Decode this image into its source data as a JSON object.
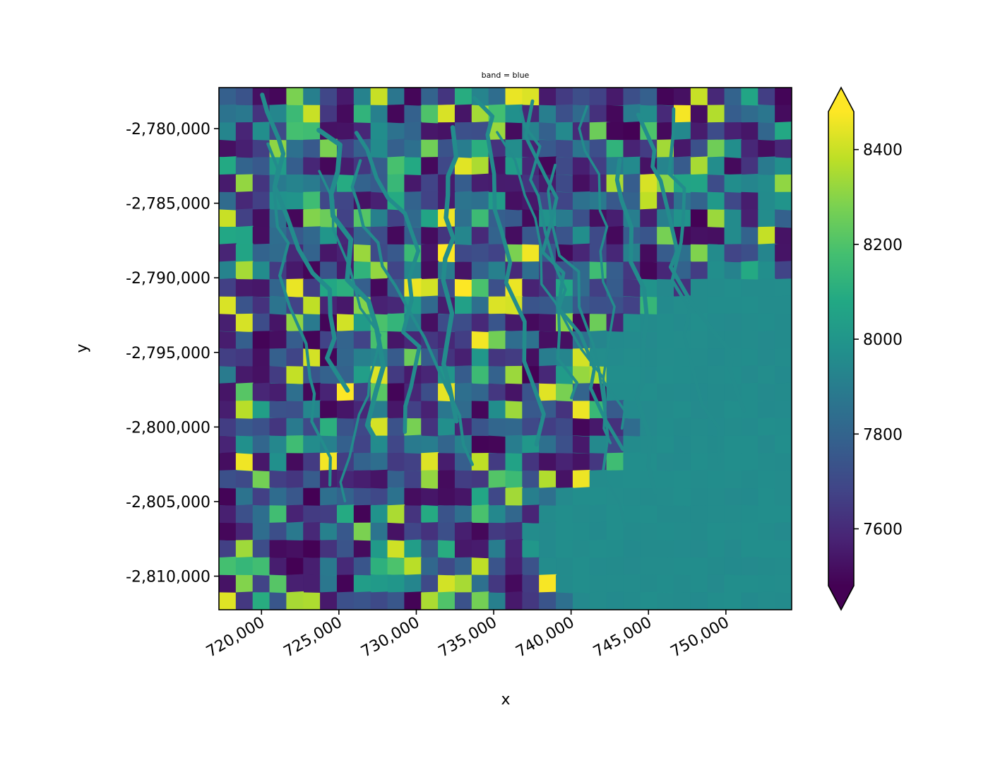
{
  "chart_data": {
    "type": "heatmap",
    "title": "band = blue",
    "xlabel": "x",
    "ylabel": "y",
    "xlim": [
      717250,
      754250
    ],
    "ylim": [
      -2812250,
      -2777250
    ],
    "xticks": [
      {
        "value": 720000,
        "label": "720,000"
      },
      {
        "value": 725000,
        "label": "725,000"
      },
      {
        "value": 730000,
        "label": "730,000"
      },
      {
        "value": 735000,
        "label": "735,000"
      },
      {
        "value": 740000,
        "label": "740,000"
      },
      {
        "value": 745000,
        "label": "745,000"
      },
      {
        "value": 750000,
        "label": "750,000"
      }
    ],
    "yticks": [
      {
        "value": -2780000,
        "label": "-2,780,000"
      },
      {
        "value": -2785000,
        "label": "-2,785,000"
      },
      {
        "value": -2790000,
        "label": "-2,790,000"
      },
      {
        "value": -2795000,
        "label": "-2,795,000"
      },
      {
        "value": -2800000,
        "label": "-2,800,000"
      },
      {
        "value": -2805000,
        "label": "-2,805,000"
      },
      {
        "value": -2810000,
        "label": "-2,810,000"
      }
    ],
    "colorbar": {
      "colormap": "viridis",
      "extend": "both",
      "range": [
        7480,
        8480
      ],
      "ticks": [
        {
          "value": 7600,
          "label": "7600"
        },
        {
          "value": 7800,
          "label": "7800"
        },
        {
          "value": 8000,
          "label": "8000"
        },
        {
          "value": 8200,
          "label": "8200"
        },
        {
          "value": 8400,
          "label": "8400"
        }
      ]
    },
    "water_value": 7960,
    "grid": false
  }
}
